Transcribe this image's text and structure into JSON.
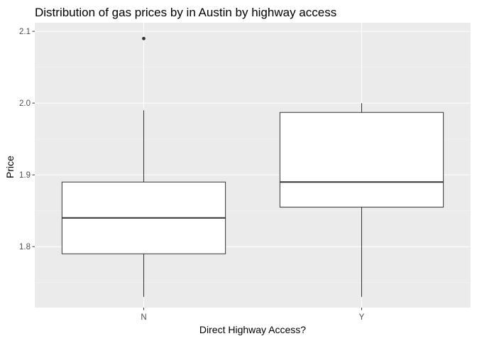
{
  "chart_data": {
    "type": "boxplot",
    "title": "Distribution of gas prices by in Austin by highway access",
    "xlabel": "Direct Highway Access?",
    "ylabel": "Price",
    "categories": [
      "N",
      "Y"
    ],
    "ylim": [
      1.715,
      2.112
    ],
    "yticks": [
      1.8,
      1.9,
      2.0,
      2.1
    ],
    "ytick_labels": [
      "1.8",
      "1.9",
      "2.0",
      "2.1"
    ],
    "boxes": [
      {
        "category": "N",
        "whisker_low": 1.73,
        "q1": 1.79,
        "median": 1.84,
        "q3": 1.89,
        "whisker_high": 1.99,
        "outliers": [
          2.09
        ]
      },
      {
        "category": "Y",
        "whisker_low": 1.73,
        "q1": 1.855,
        "median": 1.89,
        "q3": 1.987,
        "whisker_high": 2.0,
        "outliers": []
      }
    ],
    "grid": true,
    "legend": "none",
    "colors": {
      "panel_background": "#ebebeb",
      "grid_major": "#ffffff",
      "grid_minor": "#f5f5f5",
      "box_fill": "#ffffff",
      "box_line": "#333333",
      "tick_mark": "#333333"
    }
  }
}
